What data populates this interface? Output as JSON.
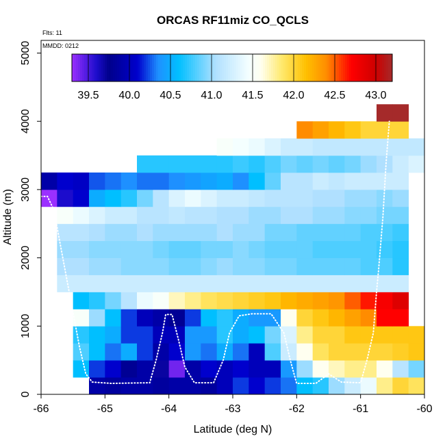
{
  "chart_data": {
    "type": "heatmap",
    "title": "ORCAS RF11miz CO_QCLS",
    "annotations": {
      "flights": "Flts: 11",
      "date": "MMDD: 0212"
    },
    "xlabel": "Latitude (deg N)",
    "ylabel": "Altitude (m)",
    "xlim": [
      -66,
      -60
    ],
    "ylim": [
      0,
      5200
    ],
    "x_ticks": [
      -66,
      -65,
      -64,
      -63,
      -62,
      -61,
      -60
    ],
    "x_tick_labels": [
      "-66",
      "-65",
      "-64",
      "-63",
      "-62",
      "-61",
      "-60"
    ],
    "y_ticks": [
      0,
      1000,
      2000,
      3000,
      4000,
      5000
    ],
    "y_tick_labels": [
      "0",
      "1000",
      "2000",
      "3000",
      "4000",
      "5000"
    ],
    "colorbar": {
      "range": [
        39.3,
        43.2
      ],
      "ticks": [
        39.5,
        40.0,
        40.5,
        41.0,
        41.5,
        42.0,
        42.5,
        43.0
      ],
      "tick_labels": [
        "39.5",
        "40.0",
        "40.5",
        "41.0",
        "41.5",
        "42.0",
        "42.5",
        "43.0"
      ],
      "stops": [
        {
          "v": 39.3,
          "c": "#9b30ff"
        },
        {
          "v": 39.6,
          "c": "#1c0ccc"
        },
        {
          "v": 39.75,
          "c": "#00008b"
        },
        {
          "v": 40.1,
          "c": "#0000cd"
        },
        {
          "v": 40.35,
          "c": "#1e90ff"
        },
        {
          "v": 40.6,
          "c": "#00bfff"
        },
        {
          "v": 41.05,
          "c": "#b0e0ff"
        },
        {
          "v": 41.45,
          "c": "#f4ffff"
        },
        {
          "v": 41.6,
          "c": "#fffff0"
        },
        {
          "v": 41.85,
          "c": "#ffea70"
        },
        {
          "v": 42.15,
          "c": "#ffc000"
        },
        {
          "v": 42.4,
          "c": "#ff8c00"
        },
        {
          "v": 42.7,
          "c": "#ff0000"
        },
        {
          "v": 43.0,
          "c": "#cd0000"
        },
        {
          "v": 43.2,
          "c": "#a52a2a"
        }
      ]
    },
    "grid": {
      "lon_start": -66.0,
      "lon_step": 0.25,
      "alt_bin": 250,
      "rows": [
        {
          "alt": 0,
          "start": 3,
          "values": [
            39.9,
            39.85,
            39.9,
            39.9,
            39.85,
            39.9,
            39.9,
            39.85,
            40.0,
            40.2,
            40.1,
            40.2,
            40.3,
            40.6,
            40.7,
            41.0,
            41.2,
            41.4,
            41.8,
            42.0,
            41.9
          ]
        },
        {
          "alt": 250,
          "start": 2,
          "values": [
            40.6,
            40.2,
            40.1,
            39.8,
            39.9,
            39.7,
            39.4,
            39.9,
            40.1,
            40.0,
            40.1,
            40.0,
            40.0,
            40.4,
            41.0,
            41.6,
            41.7,
            41.8,
            41.8,
            41.6,
            41.1,
            40.9
          ]
        },
        {
          "alt": 500,
          "start": 2,
          "values": [
            40.8,
            40.6,
            40.3,
            40.5,
            40.2,
            39.9,
            40.1,
            40.4,
            40.3,
            40.5,
            40.3,
            40.0,
            40.8,
            41.2,
            41.6,
            41.9,
            42.0,
            42.0,
            42.0,
            42.0,
            42.05,
            42.1
          ]
        },
        {
          "alt": 750,
          "start": 2,
          "values": [
            40.7,
            40.6,
            40.5,
            40.2,
            40.2,
            40.0,
            40.0,
            40.4,
            40.4,
            40.7,
            40.5,
            40.6,
            40.9,
            41.3,
            41.8,
            42.0,
            42.0,
            42.1,
            42.1,
            42.1,
            42.1,
            42.1
          ]
        },
        {
          "alt": 1000,
          "start": 2,
          "values": [
            41.5,
            41.0,
            40.6,
            40.2,
            40.0,
            39.9,
            39.8,
            40.2,
            40.6,
            40.7,
            40.5,
            40.4,
            40.4,
            41.6,
            42.0,
            42.1,
            42.2,
            42.3,
            42.4,
            42.7,
            42.7
          ]
        },
        {
          "alt": 1250,
          "start": 2,
          "values": [
            40.6,
            40.7,
            40.9,
            41.1,
            41.4,
            41.5,
            41.7,
            41.8,
            41.9,
            41.95,
            42.0,
            42.05,
            42.1,
            42.2,
            42.25,
            42.3,
            42.35,
            42.5,
            42.65,
            42.75,
            42.9
          ]
        },
        {
          "alt": 1500,
          "start": 1,
          "values": [
            41.2,
            41.2,
            41.2,
            41.2,
            41.2,
            41.2,
            41.2,
            41.2,
            41.2,
            41.2,
            41.2,
            41.2,
            41.2,
            41.2,
            41.2,
            41.2,
            41.2,
            41.2,
            41.2,
            41.2,
            41.2,
            41.2
          ]
        },
        {
          "alt": 1750,
          "start": 1,
          "values": [
            41.05,
            41.05,
            41.0,
            41.0,
            40.95,
            40.95,
            40.95,
            40.9,
            40.9,
            40.95,
            41.0,
            40.95,
            40.95,
            40.9,
            40.9,
            40.85,
            40.85,
            40.85,
            40.85,
            40.8,
            40.8,
            40.7
          ]
        },
        {
          "alt": 2000,
          "start": 1,
          "values": [
            41.0,
            41.0,
            40.95,
            40.95,
            40.95,
            40.95,
            40.9,
            40.85,
            40.85,
            40.9,
            40.9,
            40.95,
            40.9,
            40.85,
            40.85,
            40.85,
            40.8,
            40.8,
            40.8,
            40.8,
            40.75,
            40.7
          ]
        },
        {
          "alt": 2250,
          "start": 1,
          "values": [
            41.1,
            41.1,
            41.05,
            41.0,
            41.0,
            41.05,
            41.0,
            41.0,
            41.0,
            41.0,
            41.05,
            41.0,
            41.0,
            40.9,
            40.9,
            40.85,
            40.85,
            40.85,
            40.85,
            40.8,
            40.8,
            40.75
          ]
        },
        {
          "alt": 2500,
          "start": 1,
          "values": [
            41.5,
            41.4,
            41.3,
            41.2,
            41.2,
            41.1,
            41.1,
            41.15,
            41.1,
            41.1,
            41.05,
            41.05,
            41.0,
            41.0,
            41.05,
            41.05,
            41.0,
            41.0,
            40.95,
            40.95,
            40.9,
            40.9
          ]
        },
        {
          "alt": 2750,
          "start": 0,
          "values": [
            39.3,
            39.6,
            40.1,
            40.5,
            40.6,
            40.7,
            40.9,
            41.1,
            41.3,
            41.4,
            41.3,
            41.2,
            41.2,
            41.15,
            41.1,
            41.1,
            41.1,
            41.05,
            41.05,
            41.0,
            41.0,
            40.95,
            41.0
          ]
        },
        {
          "alt": 3000,
          "start": 0,
          "values": [
            39.9,
            40.1,
            40.05,
            40.25,
            40.3,
            40.35,
            40.3,
            40.3,
            40.35,
            40.4,
            40.45,
            40.5,
            40.35,
            40.6,
            40.85,
            41.1,
            41.1,
            41.2,
            41.15,
            41.2,
            41.2,
            41.2,
            41.2
          ]
        },
        {
          "alt": 3250,
          "start": 6,
          "values": [
            40.7,
            40.7,
            40.7,
            40.7,
            40.7,
            40.7,
            40.75,
            40.7,
            40.8,
            40.9,
            40.85,
            40.9,
            40.85,
            40.9,
            41.0,
            41.05,
            41.2,
            41.3
          ]
        },
        {
          "alt": 3500,
          "start": 11,
          "values": [
            41.5,
            41.45,
            41.4,
            41.3,
            41.2,
            41.2,
            41.15,
            41.15,
            41.15,
            41.15,
            41.15,
            41.15,
            41.15
          ]
        },
        {
          "alt": 3750,
          "start": 16,
          "values": [
            42.4,
            42.3,
            42.2,
            42.1,
            42.0,
            42.0,
            42.0
          ]
        },
        {
          "alt": 4000,
          "start": 21,
          "values": [
            43.2,
            43.2
          ]
        }
      ]
    }
  }
}
